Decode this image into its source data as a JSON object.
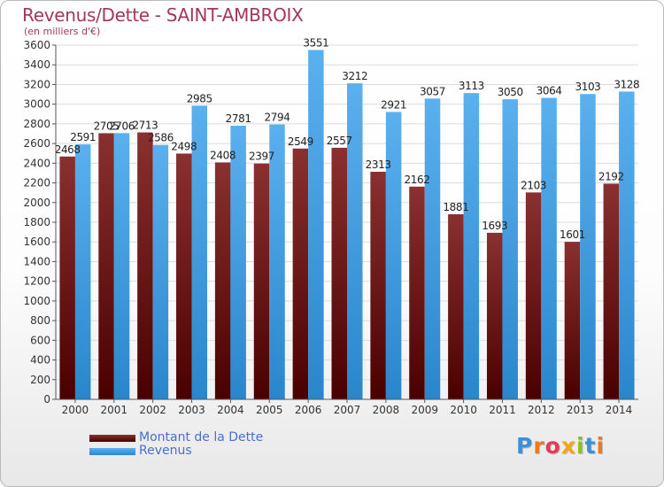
{
  "header": {
    "title": "Revenus/Dette - SAINT-AMBROIX",
    "subtitle": "(en milliers d'€)"
  },
  "legend": {
    "dette_label": "Montant de la Dette",
    "revenus_label": "Revenus"
  },
  "brand": {
    "text": "Proxiti"
  },
  "colors": {
    "dette": "#6e1818",
    "revenus": "#3c98dc",
    "grid": "#dcdcdc",
    "title": "#a4375a",
    "legend_text": "#4a6fc8"
  },
  "chart_data": {
    "type": "bar",
    "title": "Revenus/Dette - SAINT-AMBROIX",
    "ylabel": "(en milliers d'€)",
    "ylim": [
      0,
      3600
    ],
    "ytick_step": 200,
    "grid": true,
    "legend_position": "bottom-left",
    "categories": [
      "2000",
      "2001",
      "2002",
      "2003",
      "2004",
      "2005",
      "2006",
      "2007",
      "2008",
      "2009",
      "2010",
      "2011",
      "2012",
      "2013",
      "2014"
    ],
    "series": [
      {
        "name": "Montant de la Dette",
        "values": [
          2468,
          2705,
          2713,
          2498,
          2408,
          2397,
          2549,
          2557,
          2313,
          2162,
          1881,
          1693,
          2103,
          1601,
          2192
        ],
        "labels": [
          "2468",
          "2705",
          "2713",
          "2498",
          "2408",
          "2397",
          "2549",
          "2557",
          "2313",
          "2162",
          "1881",
          "1693",
          "2103",
          "1601",
          "2192"
        ]
      },
      {
        "name": "Revenus",
        "values": [
          2591,
          2706,
          2586,
          2985,
          2781,
          2794,
          3551,
          3212,
          2921,
          3057,
          3113,
          3050,
          3064,
          3103,
          3128
        ],
        "labels": [
          "2591",
          "2706",
          "2586",
          "2985",
          "2781",
          "2794",
          "3551",
          "3212",
          "2921",
          "3057",
          "3113",
          "3050",
          "3064",
          "3103",
          "3128"
        ]
      }
    ]
  }
}
